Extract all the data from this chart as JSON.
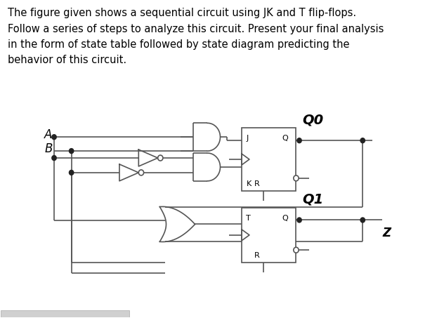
{
  "bg_color": "#ffffff",
  "text_color": "#000000",
  "line_color": "#555555",
  "title_text": "The figure given shows a sequential circuit using JK and T flip-flops.\nFollow a series of steps to analyze this circuit. Present your final analysis\nin the form of state table followed by state diagram predicting the\nbehavior of this circuit.",
  "title_fontsize": 10.5,
  "label_A": "A",
  "label_B": "B",
  "label_Q0": "Q0",
  "label_Q1": "Q1",
  "label_Z": "Z",
  "label_J": "J",
  "label_K": "K",
  "label_T": "T",
  "label_Q": "Q",
  "label_R": "R",
  "q_label_fontsize": 14,
  "io_label_fontsize": 8
}
